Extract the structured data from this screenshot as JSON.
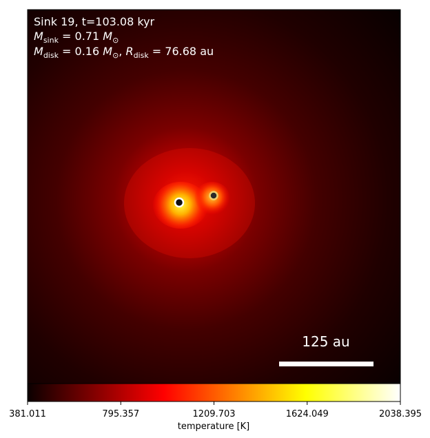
{
  "annotation": {
    "line1": "Sink 19, t=103.08 kyr",
    "line2": {
      "sym": "M",
      "sub": "sink",
      "eq": " = 0.71 ",
      "unit": "M",
      "unit_sub": "⊙"
    },
    "line3": {
      "sym": "M",
      "sub": "disk",
      "eq": " = 0.16 ",
      "unit": "M",
      "unit_sub": "⊙",
      "sep": ", ",
      "sym2": "R",
      "sub2": "disk",
      "eq2": " = 76.68 au"
    }
  },
  "scalebar": {
    "label": "125 au",
    "color": "#ffffff"
  },
  "colorbar": {
    "ticks": [
      "381.011",
      "795.357",
      "1209.703",
      "1624.049",
      "2038.395"
    ],
    "label": "temperature [K]",
    "colormap": "hot"
  },
  "sinks": [
    {
      "name": "primary-sink",
      "edge": "#ffffff",
      "fill": "#101010"
    },
    {
      "name": "secondary-sink",
      "edge": "#f0d070",
      "fill": "#2a2a2a"
    }
  ]
}
